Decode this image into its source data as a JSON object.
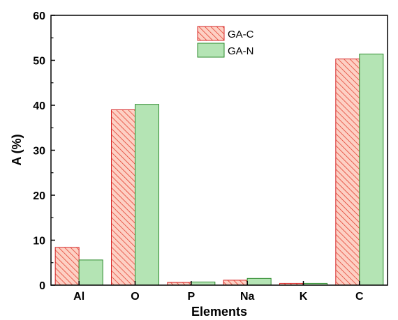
{
  "chart_data": {
    "type": "bar",
    "xlabel": "Elements",
    "ylabel": "A (%)",
    "categories": [
      "Al",
      "O",
      "P",
      "Na",
      "K",
      "C"
    ],
    "series": [
      {
        "name": "GA-C",
        "values": [
          8.4,
          39.0,
          0.6,
          1.1,
          0.4,
          50.3
        ],
        "fill": "#fdd0c4",
        "hatch": "#e03020",
        "stroke": "#d62728",
        "pattern": "diagonal-hatch"
      },
      {
        "name": "GA-N",
        "values": [
          5.6,
          40.2,
          0.7,
          1.5,
          0.4,
          51.4
        ],
        "fill": "#b4e4b4",
        "stroke": "#2e8b2e",
        "pattern": "solid"
      }
    ],
    "ylim": [
      0,
      60
    ],
    "yticks": [
      0,
      10,
      20,
      30,
      40,
      50,
      60
    ],
    "grid": false,
    "legend_position": "top-center"
  }
}
